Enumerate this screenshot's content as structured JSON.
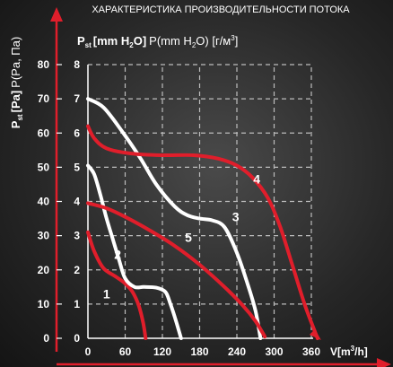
{
  "chart_data": {
    "type": "line",
    "title": "ХАРАКТЕРИСТИКА ПРОИЗВОДИТЕЛЬНОСТИ ПОТОКА",
    "ylabel_outer": {
      "main": "P",
      "sub": "st",
      "bracket": "[Pa]",
      "rest": "P(Pa, Па)"
    },
    "ylabel_inner": {
      "main": "P",
      "sub": "st",
      "bold": "[mm H",
      "bold_sub": "2",
      "bold_end": "O]",
      "rest": "P(mm H",
      "rest_sub": "2",
      "rest_end": "O) [г/м",
      "rest_sup": "3",
      "rest_close": "]"
    },
    "xlabel": {
      "main": "V[m",
      "sup": "3",
      "end": "/h]"
    },
    "x_ticks": [
      "0",
      "60",
      "120",
      "180",
      "240",
      "300",
      "360"
    ],
    "y_ticks_pa": [
      "0",
      "10",
      "20",
      "30",
      "40",
      "50",
      "60",
      "70",
      "80"
    ],
    "y_ticks_mm": [
      "0",
      "1",
      "2",
      "3",
      "4",
      "5",
      "6",
      "7",
      "8"
    ],
    "xlim": [
      0,
      400
    ],
    "ylim_mm": [
      0,
      8
    ],
    "grid": true,
    "colors": {
      "white": "#ffffff",
      "red": "#e01e2b",
      "axis": "#e01e2b",
      "grid": "#bdbdbd"
    },
    "series": [
      {
        "name": "1",
        "color": "#e01e2b",
        "x": [
          0,
          10,
          25,
          45,
          60,
          72,
          82,
          89,
          93
        ],
        "y": [
          3.1,
          2.55,
          2.05,
          1.8,
          1.6,
          1.35,
          0.95,
          0.45,
          0
        ]
      },
      {
        "name": "2",
        "color": "#ffffff",
        "x": [
          0,
          10,
          20,
          30,
          40,
          50,
          60,
          75,
          90,
          110,
          125,
          133,
          142,
          150
        ],
        "y": [
          5.05,
          4.8,
          4.2,
          3.5,
          2.9,
          2.3,
          1.75,
          1.5,
          1.5,
          1.48,
          1.35,
          1.0,
          0.5,
          0
        ]
      },
      {
        "name": "3",
        "color": "#ffffff",
        "x": [
          0,
          25,
          55,
          85,
          110,
          140,
          160,
          180,
          200,
          220,
          240,
          258,
          270,
          278
        ],
        "y": [
          7.0,
          6.75,
          6.05,
          5.25,
          4.5,
          3.85,
          3.6,
          3.5,
          3.45,
          3.25,
          2.5,
          1.55,
          0.8,
          0
        ]
      },
      {
        "name": "4",
        "color": "#e01e2b",
        "x": [
          0,
          10,
          30,
          70,
          120,
          170,
          210,
          240,
          265,
          290,
          310,
          330,
          350,
          370
        ],
        "y": [
          6.2,
          5.85,
          5.55,
          5.4,
          5.35,
          5.35,
          5.25,
          5.05,
          4.7,
          4.1,
          3.25,
          2.1,
          0.95,
          0
        ]
      },
      {
        "name": "5",
        "color": "#e01e2b",
        "x": [
          0,
          30,
          60,
          100,
          140,
          180,
          220,
          250,
          270,
          285
        ],
        "y": [
          3.95,
          3.8,
          3.55,
          3.15,
          2.7,
          2.15,
          1.5,
          0.95,
          0.5,
          0.05
        ]
      }
    ],
    "series_labels": [
      {
        "text": "1",
        "x": 30,
        "y": 1.3
      },
      {
        "text": "2",
        "x": 48,
        "y": 2.45
      },
      {
        "text": "3",
        "x": 238,
        "y": 3.55
      },
      {
        "text": "4",
        "x": 272,
        "y": 4.65
      },
      {
        "text": "5",
        "x": 162,
        "y": 2.95
      }
    ]
  }
}
